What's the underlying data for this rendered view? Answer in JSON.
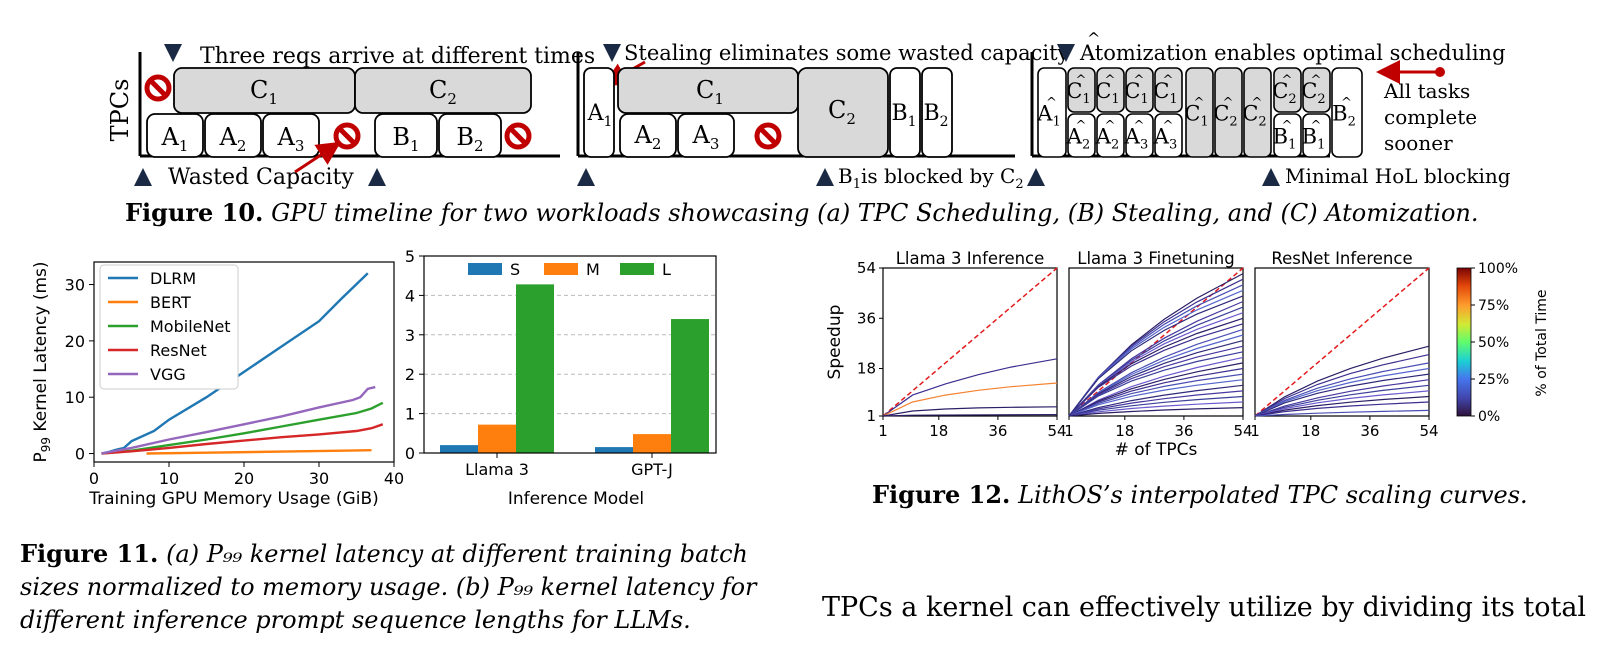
{
  "fig10": {
    "panel_a": {
      "ylabel": "TPCs",
      "top_note": "Three reqs arrive at different times",
      "bottom_note": "Wasted Capacity",
      "top_row": [
        "C",
        "C"
      ],
      "top_sub": [
        "1",
        "2"
      ],
      "bottom_row": [
        "A",
        "A",
        "A",
        "B",
        "B"
      ],
      "bottom_sub": [
        "1",
        "2",
        "3",
        "1",
        "2"
      ]
    },
    "panel_b": {
      "top_note": "Stealing eliminates some wasted capacity",
      "bottom_note_pre": "B",
      "bottom_note_sub": "1",
      "bottom_note_mid": "is blocked by C",
      "bottom_note_sub2": "2",
      "blocks": {
        "a1": "A",
        "a1s": "1",
        "c1": "C",
        "c1s": "1",
        "a2": "A",
        "a2s": "2",
        "a3": "A",
        "a3s": "3",
        "c2": "C",
        "c2s": "2",
        "b1": "B",
        "b1s": "1",
        "b2": "B",
        "b2s": "2"
      }
    },
    "panel_c": {
      "top_note": "Atomization enables optimal scheduling",
      "side_note": [
        "All tasks",
        "complete",
        "sooner"
      ],
      "bottom_note": "Minimal HoL blocking",
      "letters": {
        "a": "A",
        "b": "B",
        "c": "C"
      },
      "subs": {
        "one": "1",
        "two": "2",
        "three": "3"
      }
    },
    "caption_label": "Figure 10.",
    "caption_text": "GPU timeline for two workloads showcasing (a) TPC Scheduling, (B) Stealing, and (C) Atomization."
  },
  "fig11": {
    "caption_label": "Figure 11.",
    "caption_lines": [
      "(a) P₉₉ kernel latency at different training batch",
      "sizes normalized to memory usage. (b) P₉₉ kernel latency for",
      "different inference prompt sequence lengths for LLMs."
    ]
  },
  "fig12": {
    "caption_label": "Figure 12.",
    "caption_text": "LithOS’s interpolated TPC scaling curves.",
    "panels": [
      {
        "title": "Llama 3 Inference"
      },
      {
        "title": "Llama 3 Finetuning"
      },
      {
        "title": "ResNet Inference"
      }
    ],
    "colorbar_ticks": [
      "100%",
      "75%",
      "50%",
      "25%",
      "0%"
    ],
    "colorbar_label": "% of Total Time"
  },
  "body_text": "TPCs a kernel can effectively utilize by dividing its total",
  "chart_data": [
    {
      "type": "line",
      "title": "",
      "xlabel": "Training GPU Memory Usage (GiB)",
      "ylabel": "P99 Kernel Latency (ms)",
      "xlim": [
        0,
        40
      ],
      "ylim": [
        -1.5,
        34
      ],
      "xticks": [
        0,
        10,
        20,
        30,
        40
      ],
      "yticks": [
        0,
        10,
        20,
        30
      ],
      "grid": false,
      "legend": "top-left",
      "series": [
        {
          "name": "DLRM",
          "color": "#1f77b4",
          "x": [
            1,
            2,
            3,
            4,
            5,
            8,
            10,
            15,
            20,
            25,
            30,
            33,
            36.5
          ],
          "y": [
            0,
            0.3,
            0.7,
            1.0,
            2.2,
            4.0,
            6.0,
            10.0,
            14.5,
            19.0,
            23.5,
            27.5,
            32.0
          ]
        },
        {
          "name": "BERT",
          "color": "#ff7f0e",
          "x": [
            7,
            15,
            25,
            33,
            37
          ],
          "y": [
            0,
            0.15,
            0.35,
            0.5,
            0.6
          ]
        },
        {
          "name": "MobileNet",
          "color": "#2ca02c",
          "x": [
            1,
            5,
            10,
            15,
            20,
            25,
            30,
            35,
            37,
            38.5
          ],
          "y": [
            0,
            0.5,
            1.5,
            2.5,
            3.6,
            4.8,
            6.0,
            7.2,
            8.0,
            9.0
          ]
        },
        {
          "name": "ResNet",
          "color": "#d62728",
          "x": [
            1,
            5,
            10,
            15,
            20,
            25,
            30,
            35,
            37,
            38.5
          ],
          "y": [
            0,
            0.4,
            1.0,
            1.7,
            2.3,
            2.9,
            3.4,
            4.0,
            4.5,
            5.2
          ]
        },
        {
          "name": "VGG",
          "color": "#9467bd",
          "x": [
            1,
            5,
            10,
            15,
            20,
            25,
            30,
            34.5,
            35.5,
            36.5,
            37.5
          ],
          "y": [
            0,
            1.0,
            2.5,
            3.8,
            5.2,
            6.6,
            8.2,
            9.5,
            10.0,
            11.5,
            11.8
          ]
        }
      ]
    },
    {
      "type": "bar",
      "title": "",
      "xlabel": "Inference Model",
      "ylabel": "",
      "ylim": [
        0,
        5
      ],
      "yticks": [
        0,
        1,
        2,
        3,
        4,
        5
      ],
      "grid": true,
      "legend": "top",
      "categories": [
        "Llama 3",
        "GPT-J"
      ],
      "series": [
        {
          "name": "S",
          "color": "#1f77b4",
          "values": [
            0.2,
            0.15
          ]
        },
        {
          "name": "M",
          "color": "#ff7f0e",
          "values": [
            0.72,
            0.48
          ]
        },
        {
          "name": "L",
          "color": "#2ca02c",
          "values": [
            4.28,
            3.4
          ]
        }
      ]
    },
    {
      "type": "line",
      "title": "Llama 3 Inference",
      "xlabel": "",
      "ylabel": "Speedup",
      "xlim": [
        1,
        54
      ],
      "ylim": [
        1,
        54
      ],
      "xticks": [
        1,
        18,
        36,
        54
      ],
      "yticks": [
        1,
        18,
        36,
        54
      ],
      "grid": false,
      "series": [
        {
          "x": [
            1,
            54
          ],
          "y": [
            1,
            54
          ],
          "color": "#e31a1c",
          "dashed": true
        },
        {
          "x": [
            1,
            10,
            20,
            30,
            40,
            54
          ],
          "y": [
            1,
            8.5,
            12.5,
            15.8,
            18.5,
            21.5
          ],
          "color": "#3b2f8f"
        },
        {
          "x": [
            1,
            10,
            20,
            30,
            40,
            54
          ],
          "y": [
            1,
            6.0,
            8.5,
            10.2,
            11.5,
            12.8
          ],
          "color": "#f58231"
        },
        {
          "x": [
            1,
            10,
            20,
            30,
            40,
            54
          ],
          "y": [
            1,
            2.8,
            3.5,
            3.9,
            4.1,
            4.3
          ],
          "color": "#2c1f66"
        },
        {
          "x": [
            1,
            10,
            54
          ],
          "y": [
            1,
            1.3,
            1.5
          ],
          "color": "#2c1f66"
        }
      ]
    },
    {
      "type": "line",
      "title": "Llama 3 Finetuning",
      "xlabel": "# of TPCs",
      "ylabel": "",
      "xlim": [
        1,
        54
      ],
      "ylim": [
        1,
        54
      ],
      "xticks": [
        1,
        18,
        36,
        54
      ],
      "yticks": [
        1,
        18,
        36,
        54
      ],
      "grid": false,
      "series_finals": [
        52,
        50,
        48,
        46,
        44,
        42,
        40,
        38,
        36,
        34,
        32,
        30,
        28,
        26,
        24,
        22,
        20,
        18,
        16,
        14,
        12,
        10,
        8,
        6,
        4
      ]
    },
    {
      "type": "line",
      "title": "ResNet Inference",
      "xlabel": "",
      "ylabel": "",
      "xlim": [
        1,
        54
      ],
      "ylim": [
        1,
        54
      ],
      "xticks": [
        1,
        18,
        36,
        54
      ],
      "yticks": [
        1,
        18,
        36,
        54
      ],
      "grid": false,
      "series_finals": [
        26,
        23,
        20,
        18,
        16,
        14,
        12,
        10,
        8,
        6,
        3
      ]
    }
  ]
}
